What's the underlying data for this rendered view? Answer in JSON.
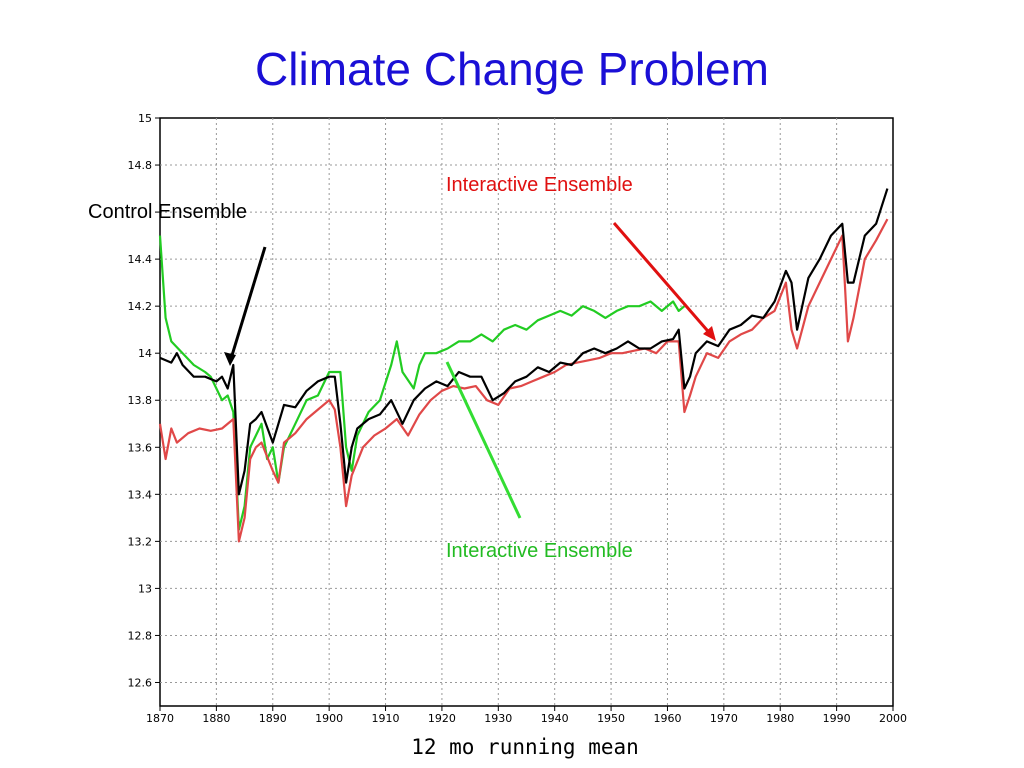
{
  "slide": {
    "title": "Climate Change Problem"
  },
  "colors": {
    "title": "#1a0fd6",
    "control": "#000000",
    "interactive_red": "#e04848",
    "interactive_green": "#22cc22",
    "arrow_red": "#e01010",
    "arrow_green": "#33dd33"
  },
  "chart_data": {
    "type": "line",
    "xlabel": "12 mo running mean",
    "ylabel": "",
    "xlim": [
      1870,
      2000
    ],
    "ylim": [
      12.5,
      15.0
    ],
    "xticks": [
      "1870",
      "1880",
      "1890",
      "1900",
      "1910",
      "1920",
      "1930",
      "1940",
      "1950",
      "1960",
      "1970",
      "1980",
      "1990",
      "2000"
    ],
    "yticks": [
      "15",
      "14.8",
      "",
      "14.4",
      "14.2",
      "14",
      "13.8",
      "13.6",
      "13.4",
      "13.2",
      "13",
      "12.8",
      "12.6"
    ],
    "grid": true,
    "annotations": {
      "control": "Control Ensemble",
      "interactive_red": "Interactive Ensemble",
      "interactive_green": "Interactive Ensemble"
    },
    "series": [
      {
        "color": "#000000",
        "x": [
          1870,
          1872,
          1873,
          1874,
          1876,
          1878,
          1880,
          1881,
          1882,
          1883,
          1884,
          1885,
          1886,
          1887,
          1888,
          1890,
          1891,
          1892,
          1894,
          1896,
          1898,
          1900,
          1901,
          1902,
          1903,
          1904,
          1905,
          1907,
          1909,
          1911,
          1913,
          1915,
          1917,
          1919,
          1921,
          1923,
          1925,
          1927,
          1929,
          1931,
          1933,
          1935,
          1937,
          1939,
          1941,
          1943,
          1945,
          1947,
          1949,
          1951,
          1953,
          1955,
          1957,
          1959,
          1961,
          1962,
          1963,
          1964,
          1965,
          1967,
          1969,
          1971,
          1973,
          1975,
          1977,
          1979,
          1981,
          1982,
          1983,
          1985,
          1987,
          1989,
          1991,
          1992,
          1993,
          1995,
          1997,
          1999
        ],
        "y": [
          13.98,
          13.96,
          14.0,
          13.95,
          13.9,
          13.9,
          13.88,
          13.9,
          13.85,
          13.95,
          13.4,
          13.5,
          13.7,
          13.72,
          13.75,
          13.62,
          13.7,
          13.78,
          13.77,
          13.84,
          13.88,
          13.9,
          13.9,
          13.7,
          13.45,
          13.6,
          13.68,
          13.72,
          13.74,
          13.8,
          13.7,
          13.8,
          13.85,
          13.88,
          13.86,
          13.92,
          13.9,
          13.9,
          13.8,
          13.83,
          13.88,
          13.9,
          13.94,
          13.92,
          13.96,
          13.95,
          14.0,
          14.02,
          14.0,
          14.02,
          14.05,
          14.02,
          14.02,
          14.05,
          14.06,
          14.1,
          13.85,
          13.9,
          14.0,
          14.05,
          14.03,
          14.1,
          14.12,
          14.16,
          14.15,
          14.22,
          14.35,
          14.3,
          14.1,
          14.32,
          14.4,
          14.5,
          14.55,
          14.3,
          14.3,
          14.5,
          14.55,
          14.7
        ]
      },
      {
        "color": "#e04848",
        "x": [
          1870,
          1871,
          1872,
          1873,
          1875,
          1877,
          1879,
          1881,
          1883,
          1884,
          1885,
          1886,
          1887,
          1888,
          1890,
          1891,
          1892,
          1894,
          1896,
          1898,
          1900,
          1901,
          1902,
          1903,
          1904,
          1906,
          1908,
          1910,
          1912,
          1914,
          1916,
          1918,
          1920,
          1922,
          1924,
          1926,
          1928,
          1930,
          1932,
          1934,
          1936,
          1938,
          1940,
          1942,
          1944,
          1946,
          1948,
          1950,
          1952,
          1954,
          1956,
          1958,
          1960,
          1962,
          1963,
          1964,
          1965,
          1967,
          1969,
          1971,
          1973,
          1975,
          1977,
          1979,
          1981,
          1982,
          1983,
          1985,
          1987,
          1989,
          1991,
          1992,
          1993,
          1995,
          1997,
          1999
        ],
        "y": [
          13.7,
          13.55,
          13.68,
          13.62,
          13.66,
          13.68,
          13.67,
          13.68,
          13.72,
          13.2,
          13.3,
          13.55,
          13.6,
          13.62,
          13.5,
          13.45,
          13.62,
          13.66,
          13.72,
          13.76,
          13.8,
          13.76,
          13.6,
          13.35,
          13.48,
          13.6,
          13.65,
          13.68,
          13.72,
          13.65,
          13.74,
          13.8,
          13.84,
          13.86,
          13.85,
          13.86,
          13.8,
          13.78,
          13.85,
          13.86,
          13.88,
          13.9,
          13.92,
          13.95,
          13.96,
          13.97,
          13.98,
          14.0,
          14.0,
          14.01,
          14.02,
          14.0,
          14.05,
          14.05,
          13.75,
          13.82,
          13.9,
          14.0,
          13.98,
          14.05,
          14.08,
          14.1,
          14.15,
          14.18,
          14.3,
          14.1,
          14.02,
          14.2,
          14.3,
          14.4,
          14.5,
          14.05,
          14.15,
          14.4,
          14.48,
          14.57
        ]
      },
      {
        "color": "#22cc22",
        "x": [
          1870,
          1871,
          1872,
          1874,
          1876,
          1878,
          1879,
          1880,
          1881,
          1882,
          1883,
          1884,
          1885,
          1886,
          1887,
          1888,
          1889,
          1890,
          1891,
          1892,
          1894,
          1896,
          1898,
          1900,
          1902,
          1903,
          1904,
          1905,
          1907,
          1909,
          1911,
          1912,
          1913,
          1915,
          1916,
          1917,
          1919,
          1921,
          1923,
          1925,
          1927,
          1929,
          1931,
          1933,
          1935,
          1937,
          1939,
          1941,
          1943,
          1945,
          1947,
          1949,
          1951,
          1953,
          1955,
          1957,
          1959,
          1961,
          1962,
          1963
        ],
        "y": [
          14.5,
          14.15,
          14.05,
          14.0,
          13.95,
          13.92,
          13.9,
          13.85,
          13.8,
          13.82,
          13.75,
          13.25,
          13.35,
          13.6,
          13.65,
          13.7,
          13.55,
          13.6,
          13.45,
          13.6,
          13.7,
          13.8,
          13.82,
          13.92,
          13.92,
          13.6,
          13.5,
          13.65,
          13.75,
          13.8,
          13.95,
          14.05,
          13.92,
          13.85,
          13.95,
          14.0,
          14.0,
          14.02,
          14.05,
          14.05,
          14.08,
          14.05,
          14.1,
          14.12,
          14.1,
          14.14,
          14.16,
          14.18,
          14.16,
          14.2,
          14.18,
          14.15,
          14.18,
          14.2,
          14.2,
          14.22,
          14.18,
          14.22,
          14.18,
          14.2
        ]
      }
    ]
  }
}
